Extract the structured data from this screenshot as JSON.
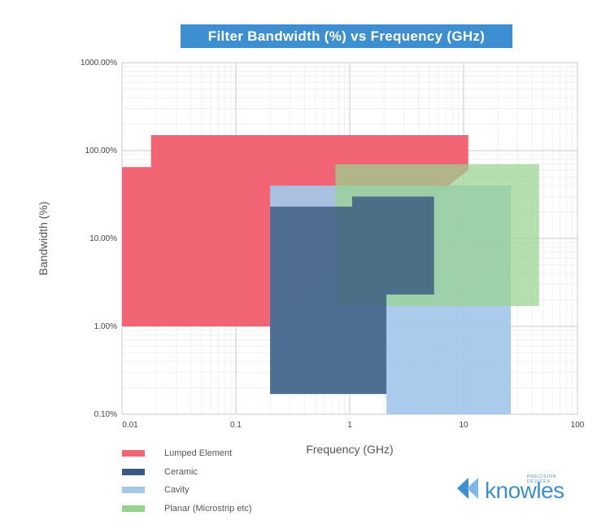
{
  "chart_data": {
    "type": "area",
    "title": "Filter Bandwidth (%) vs Frequency (GHz)",
    "xlabel": "Frequency (GHz)",
    "ylabel": "Bandwidth (%)",
    "xscale": "log",
    "yscale": "log",
    "xlim": [
      0.01,
      100
    ],
    "ylim": [
      0.1,
      1000
    ],
    "grid": true,
    "x_ticks": [
      {
        "value": 0.01,
        "label": "0.01"
      },
      {
        "value": 0.1,
        "label": "0.1"
      },
      {
        "value": 1,
        "label": "1"
      },
      {
        "value": 10,
        "label": "10"
      },
      {
        "value": 100,
        "label": "100"
      }
    ],
    "y_ticks": [
      {
        "value": 0.1,
        "label": "0.10%"
      },
      {
        "value": 1,
        "label": "1.00%"
      },
      {
        "value": 10,
        "label": "10.00%"
      },
      {
        "value": 100,
        "label": "100.00%"
      },
      {
        "value": 1000,
        "label": "1000.00%"
      }
    ],
    "series": [
      {
        "name": "Lumped Element",
        "color": "#f06473",
        "polygon": [
          [
            0.01,
            1
          ],
          [
            0.01,
            65
          ],
          [
            0.018,
            65
          ],
          [
            0.018,
            150
          ],
          [
            11,
            150
          ],
          [
            11,
            60
          ],
          [
            0.2,
            1
          ]
        ]
      },
      {
        "name": "Cavity",
        "color": "#a4c7ea",
        "polygon": [
          [
            0.2,
            0.17
          ],
          [
            0.2,
            40
          ],
          [
            26,
            40
          ],
          [
            26,
            0.1
          ],
          [
            2.1,
            0.1
          ],
          [
            2.1,
            0.17
          ]
        ]
      },
      {
        "name": "Planar (Microstrip etc)",
        "color": "#98d28f",
        "polygon": [
          [
            0.75,
            1.7
          ],
          [
            0.75,
            70
          ],
          [
            46,
            70
          ],
          [
            46,
            1.7
          ]
        ]
      },
      {
        "name": "Ceramic",
        "color": "#3a5980",
        "polygon": [
          [
            0.2,
            0.17
          ],
          [
            0.2,
            23
          ],
          [
            1.05,
            23
          ],
          [
            1.05,
            30
          ],
          [
            5.5,
            30
          ],
          [
            5.5,
            2.3
          ],
          [
            2.1,
            2.3
          ],
          [
            2.1,
            0.17
          ]
        ]
      }
    ],
    "legend": {
      "position": "bottom-left"
    }
  },
  "brand": {
    "name": "knowles",
    "tagline": "PRECISION DEVICES",
    "color": "#3d8fd1"
  }
}
